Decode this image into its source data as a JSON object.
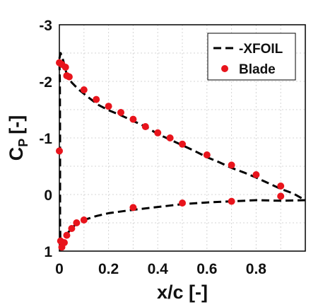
{
  "chart_data": {
    "type": "line",
    "title": "",
    "xlabel": "x/c [-]",
    "ylabel_main": "C",
    "ylabel_sub": "P",
    "ylabel_unit": "[-]",
    "xlim": [
      0,
      1
    ],
    "ylim": [
      1,
      -3
    ],
    "y_reversed": true,
    "grid": true,
    "legend_position": "top-right",
    "x_ticks": [
      0,
      0.2,
      0.4,
      0.6,
      0.8
    ],
    "x_tick_labels": [
      "0",
      "0.2",
      "0.4",
      "0.6",
      "0.8"
    ],
    "y_ticks": [
      -3,
      -2,
      -1,
      0,
      1
    ],
    "y_tick_labels": [
      "-3",
      "-2",
      "-1",
      "0",
      "1"
    ],
    "series": [
      {
        "name": "-XFOIL",
        "style": "dashed-line",
        "color": "#000000",
        "segments": [
          {
            "x": [
              0.0,
              0.005,
              0.01,
              0.02,
              0.03,
              0.05,
              0.08,
              0.12,
              0.16,
              0.2,
              0.25,
              0.3,
              0.35,
              0.4,
              0.45,
              0.5,
              0.55,
              0.6,
              0.65,
              0.7,
              0.75,
              0.8,
              0.85,
              0.9,
              0.95,
              1.0
            ],
            "y": [
              -2.4,
              -2.5,
              -2.45,
              -2.3,
              -2.12,
              -1.98,
              -1.85,
              -1.71,
              -1.58,
              -1.49,
              -1.4,
              -1.3,
              -1.2,
              -1.07,
              -0.97,
              -0.87,
              -0.77,
              -0.66,
              -0.57,
              -0.47,
              -0.39,
              -0.3,
              -0.2,
              -0.1,
              -0.02,
              0.1
            ]
          },
          {
            "x": [
              1.0,
              0.9,
              0.8,
              0.7,
              0.6,
              0.5,
              0.4,
              0.3,
              0.2,
              0.15,
              0.1,
              0.07,
              0.05,
              0.03,
              0.02,
              0.01,
              0.005,
              0.003,
              0.003,
              0.003,
              0.002,
              0.0
            ],
            "y": [
              0.1,
              0.11,
              0.1,
              0.12,
              0.14,
              0.17,
              0.22,
              0.27,
              0.33,
              0.38,
              0.45,
              0.51,
              0.6,
              0.7,
              0.8,
              0.9,
              1.0,
              0.5,
              0.0,
              -1.0,
              -2.0,
              -2.4
            ]
          }
        ]
      },
      {
        "name": "Blade",
        "style": "markers",
        "color": "#e8141c",
        "x": [
          0.0,
          0.01,
          0.025,
          0.03,
          0.04,
          0.1,
          0.15,
          0.2,
          0.25,
          0.3,
          0.35,
          0.4,
          0.45,
          0.5,
          0.6,
          0.7,
          0.8,
          0.9,
          0.0,
          0.005,
          0.01,
          0.02,
          0.03,
          0.05,
          0.07,
          0.1,
          0.3,
          0.5,
          0.7,
          0.9
        ],
        "y": [
          -2.33,
          -2.3,
          -2.25,
          -2.1,
          -2.08,
          -1.85,
          -1.68,
          -1.56,
          -1.45,
          -1.33,
          -1.2,
          -1.09,
          -1.0,
          -0.89,
          -0.7,
          -0.52,
          -0.35,
          -0.15,
          -0.77,
          0.82,
          0.93,
          0.85,
          0.72,
          0.6,
          0.5,
          0.45,
          0.23,
          0.15,
          0.12,
          0.03
        ]
      }
    ]
  }
}
